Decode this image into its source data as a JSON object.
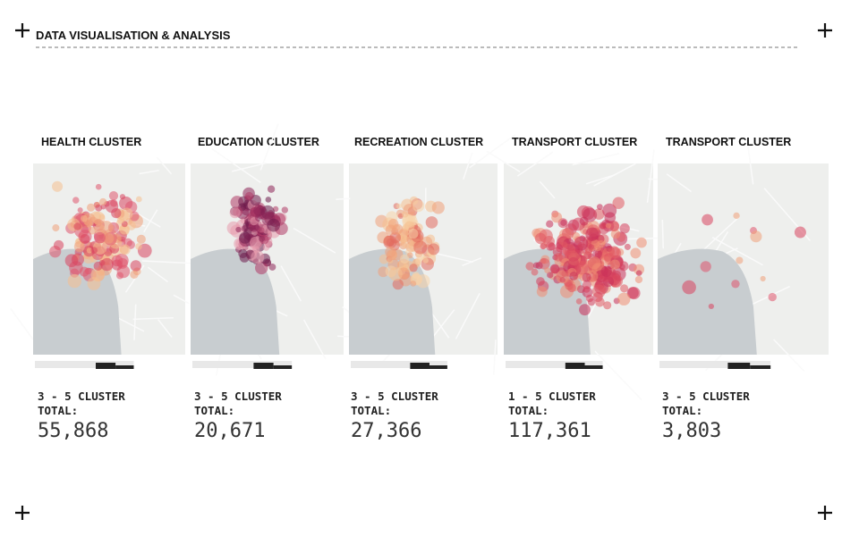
{
  "header": {
    "title": "DATA VISUALISATION & ANALYSIS"
  },
  "panels": [
    {
      "title": "HEALTH CLUSTER",
      "cluster": "3 - 5 CLUSTER",
      "total_label": "TOTAL:",
      "total": "55,868"
    },
    {
      "title": "EDUCATION CLUSTER",
      "cluster": "3 - 5 CLUSTER",
      "total_label": "TOTAL:",
      "total": "20,671"
    },
    {
      "title": "RECREATION CLUSTER",
      "cluster": "3 - 5 CLUSTER",
      "total_label": "TOTAL:",
      "total": "27,366"
    },
    {
      "title": "TRANSPORT CLUSTER",
      "cluster": "1 - 5 CLUSTER",
      "total_label": "TOTAL:",
      "total": "117,361"
    },
    {
      "title": "TRANSPORT CLUSTER",
      "cluster": "3 - 5 CLUSTER",
      "total_label": "TOTAL:",
      "total": "3,803"
    }
  ]
}
